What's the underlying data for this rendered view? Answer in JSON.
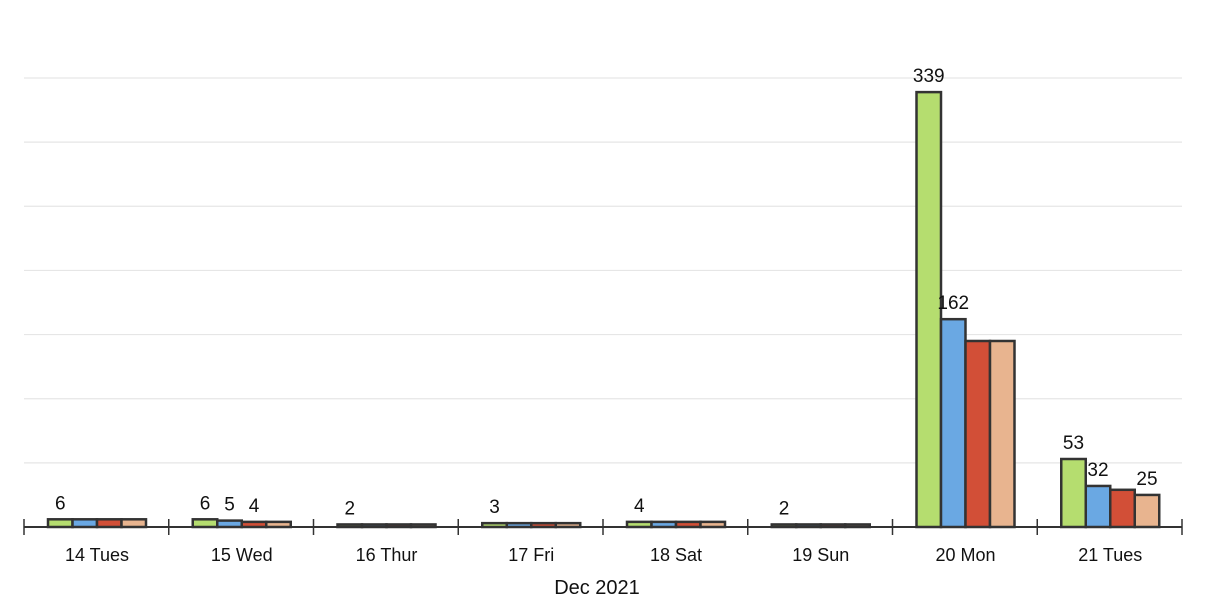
{
  "chart_data": {
    "type": "bar",
    "title": "",
    "xlabel": "Dec 2021",
    "ylabel": "",
    "ylim": [
      0,
      350
    ],
    "grid": true,
    "legend": "none",
    "categories": [
      "14 Tues",
      "15 Wed",
      "16 Thur",
      "17 Fri",
      "18 Sat",
      "19 Sun",
      "20 Mon",
      "21 Tues"
    ],
    "series": [
      {
        "color": "#b5dd6f",
        "values": [
          6,
          6,
          2,
          3,
          4,
          2,
          339,
          53
        ]
      },
      {
        "color": "#6aa8e3",
        "values": [
          6,
          5,
          2,
          3,
          4,
          2,
          162,
          32
        ]
      },
      {
        "color": "#d24f37",
        "values": [
          6,
          4,
          2,
          3,
          4,
          2,
          145,
          29
        ]
      },
      {
        "color": "#e8b48f",
        "values": [
          6,
          4,
          2,
          3,
          4,
          2,
          145,
          25
        ]
      }
    ],
    "data_labels": [
      {
        "category": 0,
        "series": 0,
        "text": "6"
      },
      {
        "category": 1,
        "series": 0,
        "text": "6"
      },
      {
        "category": 1,
        "series": 1,
        "text": "5"
      },
      {
        "category": 1,
        "series": 2,
        "text": "4"
      },
      {
        "category": 2,
        "series": 0,
        "text": "2"
      },
      {
        "category": 3,
        "series": 0,
        "text": "3"
      },
      {
        "category": 4,
        "series": 0,
        "text": "4"
      },
      {
        "category": 5,
        "series": 0,
        "text": "2"
      },
      {
        "category": 6,
        "series": 0,
        "text": "339"
      },
      {
        "category": 6,
        "series": 1,
        "text": "162"
      },
      {
        "category": 7,
        "series": 0,
        "text": "53"
      },
      {
        "category": 7,
        "series": 1,
        "text": "32"
      },
      {
        "category": 7,
        "series": 3,
        "text": "25"
      }
    ]
  }
}
